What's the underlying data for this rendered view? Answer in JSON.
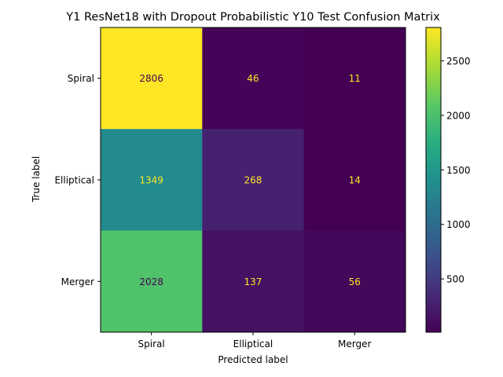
{
  "chart_data": {
    "type": "heatmap",
    "title": "Y1 ResNet18 with Dropout Probabilistic Y10 Test Confusion Matrix",
    "xlabel": "Predicted label",
    "ylabel": "True label",
    "x_categories": [
      "Spiral",
      "Elliptical",
      "Merger"
    ],
    "y_categories": [
      "Spiral",
      "Elliptical",
      "Merger"
    ],
    "values": [
      [
        2806,
        46,
        11
      ],
      [
        1349,
        268,
        14
      ],
      [
        2028,
        137,
        56
      ]
    ],
    "colormap": "viridis",
    "vmin": 11,
    "vmax": 2806,
    "colorbar_ticks": [
      500,
      1000,
      1500,
      2000,
      2500
    ],
    "text_color_dark": "#440154",
    "text_color_light": "#fde725"
  }
}
